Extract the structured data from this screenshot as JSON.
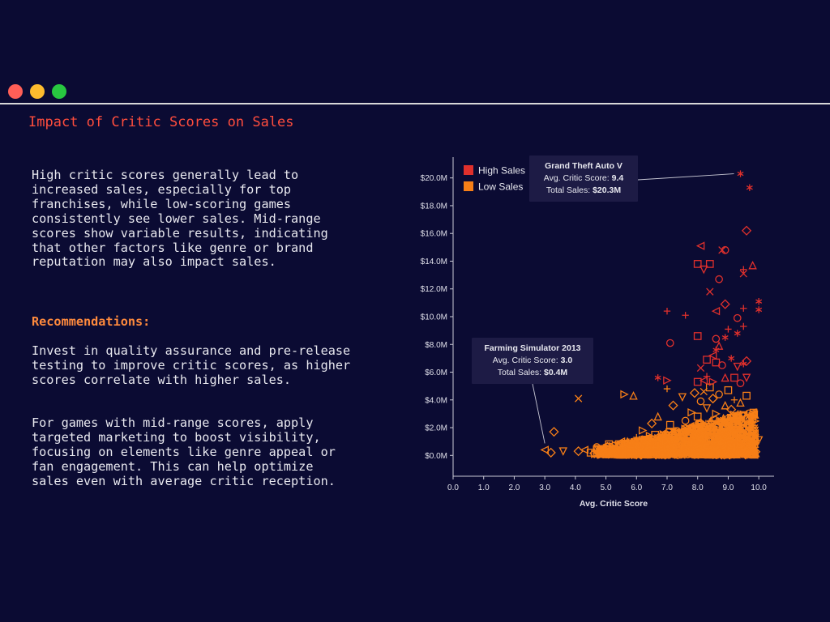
{
  "window": {
    "controls": [
      "close",
      "minimize",
      "maximize"
    ]
  },
  "page": {
    "title": "Impact of Critic Scores on Sales",
    "summary": "High critic scores generally lead to increased sales, especially for top franchises, while low-scoring games consistently see lower sales. Mid-range scores show variable results, indicating that other factors like genre or brand reputation may also impact sales.",
    "recommendations_heading": "Recommendations:",
    "recommendation_1": "Invest in quality assurance and pre-release testing to improve critic scores, as higher scores correlate with higher sales.",
    "recommendation_2": "For games with mid-range scores, apply targeted marketing to boost visibility, focusing on elements like genre appeal or fan engagement. This can help optimize sales even with average critic reception."
  },
  "colors": {
    "high": "#e0302c",
    "low": "#f77f17",
    "background": "#0b0b33",
    "title": "#ff4d3d",
    "accent": "#ff8a3d"
  },
  "chart_data": {
    "type": "scatter",
    "xlabel": "Avg. Critic Score",
    "ylabel": "",
    "xlim": [
      0,
      10.5
    ],
    "ylim": [
      -1.5,
      21.5
    ],
    "x_ticks": [
      0,
      1,
      2,
      3,
      4,
      5,
      6,
      7,
      8,
      9,
      10
    ],
    "x_tick_labels": [
      "0.0",
      "1.0",
      "2.0",
      "3.0",
      "4.0",
      "5.0",
      "6.0",
      "7.0",
      "8.0",
      "9.0",
      "10.0"
    ],
    "y_ticks": [
      0,
      2,
      4,
      6,
      8,
      10,
      12,
      14,
      16,
      18,
      20
    ],
    "y_tick_labels": [
      "$0.0M",
      "$2.0M",
      "$4.0M",
      "$6.0M",
      "$8.0M",
      "$10.0M",
      "$12.0M",
      "$14.0M",
      "$16.0M",
      "$18.0M",
      "$20.0M"
    ],
    "legend": {
      "placement": "top-left",
      "entries": [
        "High Sales",
        "Low Sales"
      ]
    },
    "shape_encoding": [
      "asterisk",
      "triangle-left",
      "square",
      "circle",
      "diamond",
      "triangle-up",
      "triangle-down",
      "triangle-right",
      "plus",
      "cross"
    ],
    "series": [
      {
        "name": "High Sales",
        "color": "#e0302c",
        "points": [
          {
            "x": 9.4,
            "y": 20.3,
            "shape": "asterisk"
          },
          {
            "x": 9.7,
            "y": 19.3,
            "shape": "asterisk"
          },
          {
            "x": 9.6,
            "y": 16.2,
            "shape": "diamond"
          },
          {
            "x": 8.1,
            "y": 15.1,
            "shape": "triangle-left"
          },
          {
            "x": 8.8,
            "y": 14.8,
            "shape": "cross"
          },
          {
            "x": 8.9,
            "y": 14.8,
            "shape": "circle"
          },
          {
            "x": 8.0,
            "y": 13.8,
            "shape": "square"
          },
          {
            "x": 8.4,
            "y": 13.8,
            "shape": "square"
          },
          {
            "x": 9.5,
            "y": 13.4,
            "shape": "plus"
          },
          {
            "x": 9.8,
            "y": 13.7,
            "shape": "triangle-up"
          },
          {
            "x": 9.5,
            "y": 13.1,
            "shape": "cross"
          },
          {
            "x": 8.2,
            "y": 13.4,
            "shape": "triangle-down"
          },
          {
            "x": 8.7,
            "y": 12.7,
            "shape": "circle"
          },
          {
            "x": 8.4,
            "y": 11.8,
            "shape": "cross"
          },
          {
            "x": 10.0,
            "y": 11.1,
            "shape": "asterisk"
          },
          {
            "x": 10.0,
            "y": 10.5,
            "shape": "asterisk"
          },
          {
            "x": 9.5,
            "y": 10.6,
            "shape": "plus"
          },
          {
            "x": 8.9,
            "y": 10.9,
            "shape": "diamond"
          },
          {
            "x": 7.0,
            "y": 10.4,
            "shape": "plus"
          },
          {
            "x": 7.6,
            "y": 10.1,
            "shape": "plus"
          },
          {
            "x": 8.6,
            "y": 10.4,
            "shape": "triangle-left"
          },
          {
            "x": 9.3,
            "y": 9.9,
            "shape": "circle"
          },
          {
            "x": 9.0,
            "y": 9.1,
            "shape": "plus"
          },
          {
            "x": 9.5,
            "y": 9.3,
            "shape": "plus"
          },
          {
            "x": 8.0,
            "y": 8.6,
            "shape": "square"
          },
          {
            "x": 8.9,
            "y": 8.5,
            "shape": "asterisk"
          },
          {
            "x": 9.3,
            "y": 8.8,
            "shape": "asterisk"
          },
          {
            "x": 8.6,
            "y": 8.4,
            "shape": "circle"
          },
          {
            "x": 7.1,
            "y": 8.1,
            "shape": "circle"
          },
          {
            "x": 8.7,
            "y": 7.9,
            "shape": "triangle-up"
          },
          {
            "x": 8.6,
            "y": 7.6,
            "shape": "asterisk"
          },
          {
            "x": 8.5,
            "y": 7.2,
            "shape": "triangle-left"
          },
          {
            "x": 9.1,
            "y": 7.0,
            "shape": "asterisk"
          },
          {
            "x": 9.6,
            "y": 6.8,
            "shape": "diamond"
          },
          {
            "x": 9.5,
            "y": 6.6,
            "shape": "asterisk"
          },
          {
            "x": 8.3,
            "y": 6.9,
            "shape": "square"
          },
          {
            "x": 8.1,
            "y": 6.3,
            "shape": "cross"
          },
          {
            "x": 8.8,
            "y": 6.5,
            "shape": "circle"
          },
          {
            "x": 9.3,
            "y": 6.4,
            "shape": "triangle-down"
          },
          {
            "x": 8.6,
            "y": 6.7,
            "shape": "square"
          },
          {
            "x": 8.0,
            "y": 5.3,
            "shape": "square"
          },
          {
            "x": 8.3,
            "y": 5.7,
            "shape": "plus"
          },
          {
            "x": 6.7,
            "y": 5.6,
            "shape": "asterisk"
          },
          {
            "x": 7.0,
            "y": 5.4,
            "shape": "triangle-right"
          },
          {
            "x": 8.2,
            "y": 5.4,
            "shape": "triangle-left"
          },
          {
            "x": 9.2,
            "y": 5.6,
            "shape": "square"
          },
          {
            "x": 9.6,
            "y": 5.6,
            "shape": "triangle-down"
          },
          {
            "x": 8.5,
            "y": 5.3,
            "shape": "triangle-right"
          },
          {
            "x": 8.9,
            "y": 5.6,
            "shape": "triangle-up"
          },
          {
            "x": 9.4,
            "y": 5.2,
            "shape": "circle"
          }
        ]
      },
      {
        "name": "Low Sales",
        "color": "#f77f17",
        "points": [
          {
            "x": 3.0,
            "y": 0.4,
            "shape": "triangle-left"
          },
          {
            "x": 3.2,
            "y": 0.2,
            "shape": "diamond"
          },
          {
            "x": 3.3,
            "y": 1.7,
            "shape": "diamond"
          },
          {
            "x": 3.6,
            "y": 0.3,
            "shape": "triangle-down"
          },
          {
            "x": 4.1,
            "y": 4.1,
            "shape": "cross"
          },
          {
            "x": 4.1,
            "y": 0.3,
            "shape": "diamond"
          },
          {
            "x": 4.3,
            "y": 0.4,
            "shape": "triangle-left"
          },
          {
            "x": 4.5,
            "y": 0.2,
            "shape": "square"
          },
          {
            "x": 4.7,
            "y": 0.6,
            "shape": "circle"
          },
          {
            "x": 4.8,
            "y": 0.3,
            "shape": "triangle-up"
          },
          {
            "x": 5.0,
            "y": 0.5,
            "shape": "diamond"
          },
          {
            "x": 5.1,
            "y": 0.8,
            "shape": "square"
          },
          {
            "x": 5.3,
            "y": 0.3,
            "shape": "circle"
          },
          {
            "x": 5.5,
            "y": 1.0,
            "shape": "triangle-left"
          },
          {
            "x": 5.6,
            "y": 4.4,
            "shape": "triangle-right"
          },
          {
            "x": 5.9,
            "y": 4.3,
            "shape": "triangle-up"
          },
          {
            "x": 5.8,
            "y": 0.5,
            "shape": "square"
          },
          {
            "x": 6.0,
            "y": 1.3,
            "shape": "plus"
          },
          {
            "x": 6.1,
            "y": 0.6,
            "shape": "diamond"
          },
          {
            "x": 6.2,
            "y": 1.8,
            "shape": "triangle-right"
          },
          {
            "x": 6.3,
            "y": 0.4,
            "shape": "cross"
          },
          {
            "x": 6.4,
            "y": 1.2,
            "shape": "circle"
          },
          {
            "x": 6.5,
            "y": 2.3,
            "shape": "diamond"
          },
          {
            "x": 6.6,
            "y": 0.7,
            "shape": "square"
          },
          {
            "x": 6.7,
            "y": 2.8,
            "shape": "triangle-up"
          },
          {
            "x": 6.8,
            "y": 1.5,
            "shape": "triangle-left"
          },
          {
            "x": 6.9,
            "y": 0.5,
            "shape": "plus"
          },
          {
            "x": 7.0,
            "y": 4.8,
            "shape": "plus"
          },
          {
            "x": 7.0,
            "y": 1.0,
            "shape": "circle"
          },
          {
            "x": 7.1,
            "y": 2.2,
            "shape": "square"
          },
          {
            "x": 7.2,
            "y": 3.6,
            "shape": "diamond"
          },
          {
            "x": 7.3,
            "y": 0.6,
            "shape": "triangle-down"
          },
          {
            "x": 7.4,
            "y": 1.7,
            "shape": "cross"
          },
          {
            "x": 7.5,
            "y": 4.2,
            "shape": "triangle-down"
          },
          {
            "x": 7.6,
            "y": 2.5,
            "shape": "circle"
          },
          {
            "x": 7.7,
            "y": 0.9,
            "shape": "square"
          },
          {
            "x": 7.8,
            "y": 3.1,
            "shape": "triangle-right"
          },
          {
            "x": 7.8,
            "y": 1.3,
            "shape": "plus"
          },
          {
            "x": 7.9,
            "y": 4.5,
            "shape": "diamond"
          },
          {
            "x": 8.0,
            "y": 0.5,
            "shape": "triangle-left"
          },
          {
            "x": 8.0,
            "y": 2.8,
            "shape": "square"
          },
          {
            "x": 8.1,
            "y": 3.9,
            "shape": "circle"
          },
          {
            "x": 8.1,
            "y": 1.6,
            "shape": "triangle-up"
          },
          {
            "x": 8.2,
            "y": 4.6,
            "shape": "cross"
          },
          {
            "x": 8.2,
            "y": 2.1,
            "shape": "diamond"
          },
          {
            "x": 8.3,
            "y": 0.8,
            "shape": "plus"
          },
          {
            "x": 8.3,
            "y": 3.4,
            "shape": "triangle-down"
          },
          {
            "x": 8.4,
            "y": 4.9,
            "shape": "square"
          },
          {
            "x": 8.4,
            "y": 1.2,
            "shape": "circle"
          },
          {
            "x": 8.5,
            "y": 2.6,
            "shape": "triangle-left"
          },
          {
            "x": 8.5,
            "y": 4.1,
            "shape": "diamond"
          },
          {
            "x": 8.6,
            "y": 0.4,
            "shape": "cross"
          },
          {
            "x": 8.6,
            "y": 3.0,
            "shape": "triangle-right"
          },
          {
            "x": 8.7,
            "y": 1.8,
            "shape": "square"
          },
          {
            "x": 8.7,
            "y": 4.4,
            "shape": "circle"
          },
          {
            "x": 8.8,
            "y": 2.4,
            "shape": "plus"
          },
          {
            "x": 8.8,
            "y": 0.9,
            "shape": "diamond"
          },
          {
            "x": 8.9,
            "y": 3.6,
            "shape": "triangle-up"
          },
          {
            "x": 8.9,
            "y": 1.4,
            "shape": "triangle-down"
          },
          {
            "x": 9.0,
            "y": 4.7,
            "shape": "square"
          },
          {
            "x": 9.0,
            "y": 2.0,
            "shape": "circle"
          },
          {
            "x": 9.1,
            "y": 0.6,
            "shape": "triangle-left"
          },
          {
            "x": 9.1,
            "y": 3.3,
            "shape": "diamond"
          },
          {
            "x": 9.2,
            "y": 1.1,
            "shape": "cross"
          },
          {
            "x": 9.2,
            "y": 4.0,
            "shape": "plus"
          },
          {
            "x": 9.3,
            "y": 2.7,
            "shape": "square"
          },
          {
            "x": 9.4,
            "y": 0.8,
            "shape": "circle"
          },
          {
            "x": 9.4,
            "y": 3.8,
            "shape": "triangle-up"
          },
          {
            "x": 9.5,
            "y": 1.6,
            "shape": "diamond"
          },
          {
            "x": 9.5,
            "y": 2.9,
            "shape": "triangle-down"
          },
          {
            "x": 9.6,
            "y": 4.3,
            "shape": "square"
          },
          {
            "x": 9.6,
            "y": 1.3,
            "shape": "plus"
          },
          {
            "x": 9.7,
            "y": 2.2,
            "shape": "circle"
          },
          {
            "x": 9.8,
            "y": 3.1,
            "shape": "triangle-left"
          },
          {
            "x": 9.7,
            "y": 0.5,
            "shape": "diamond"
          },
          {
            "x": 10.0,
            "y": 1.1,
            "shape": "triangle-down"
          }
        ]
      }
    ],
    "annotations": [
      {
        "title": "Grand Theft Auto V",
        "score_label": "Avg. Critic Score:",
        "score_value": "9.4",
        "sales_label": "Total Sales:",
        "sales_value": "$20.3M",
        "target": {
          "x": 9.4,
          "y": 20.3
        }
      },
      {
        "title": "Farming Simulator 2013",
        "score_label": "Avg. Critic Score:",
        "score_value": "3.0",
        "sales_label": "Total Sales:",
        "sales_value": "$0.4M",
        "target": {
          "x": 3.0,
          "y": 0.4
        }
      }
    ]
  }
}
